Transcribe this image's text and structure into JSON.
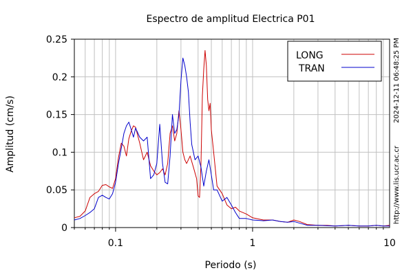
{
  "chart_data": {
    "type": "line",
    "title": "Espectro de amplitud Electrica P01",
    "xlabel": "Periodo (s)",
    "ylabel": "Amplitud (cm/s)",
    "x_scale": "log",
    "xlim": [
      0.05,
      10
    ],
    "ylim": [
      0,
      0.25
    ],
    "x_ticks": [
      {
        "value": 0.1,
        "label": "0.1"
      },
      {
        "value": 1,
        "label": "1"
      },
      {
        "value": 10,
        "label": "10"
      }
    ],
    "y_ticks": [
      {
        "value": 0,
        "label": "0"
      },
      {
        "value": 0.05,
        "label": "0.05"
      },
      {
        "value": 0.1,
        "label": "0.1"
      },
      {
        "value": 0.15,
        "label": "0.15"
      },
      {
        "value": 0.2,
        "label": "0.2"
      },
      {
        "value": 0.25,
        "label": "0.25"
      }
    ],
    "grid": true,
    "legend_position": "top-right",
    "side_text_top": "2024-12-11 06:48:25 PM",
    "side_text_bottom": "http://www.lis.ucr.ac.cr",
    "series": [
      {
        "name": "LONG",
        "color": "#cc0000",
        "points": [
          [
            0.05,
            0.013
          ],
          [
            0.055,
            0.015
          ],
          [
            0.06,
            0.022
          ],
          [
            0.065,
            0.04
          ],
          [
            0.07,
            0.045
          ],
          [
            0.075,
            0.048
          ],
          [
            0.08,
            0.056
          ],
          [
            0.085,
            0.057
          ],
          [
            0.09,
            0.054
          ],
          [
            0.095,
            0.052
          ],
          [
            0.1,
            0.065
          ],
          [
            0.105,
            0.093
          ],
          [
            0.11,
            0.112
          ],
          [
            0.115,
            0.108
          ],
          [
            0.12,
            0.095
          ],
          [
            0.125,
            0.118
          ],
          [
            0.13,
            0.128
          ],
          [
            0.135,
            0.135
          ],
          [
            0.14,
            0.133
          ],
          [
            0.15,
            0.112
          ],
          [
            0.16,
            0.09
          ],
          [
            0.17,
            0.1
          ],
          [
            0.18,
            0.082
          ],
          [
            0.19,
            0.075
          ],
          [
            0.2,
            0.07
          ],
          [
            0.21,
            0.073
          ],
          [
            0.22,
            0.078
          ],
          [
            0.23,
            0.07
          ],
          [
            0.24,
            0.085
          ],
          [
            0.25,
            0.125
          ],
          [
            0.26,
            0.135
          ],
          [
            0.27,
            0.115
          ],
          [
            0.28,
            0.125
          ],
          [
            0.29,
            0.155
          ],
          [
            0.3,
            0.13
          ],
          [
            0.31,
            0.1
          ],
          [
            0.32,
            0.09
          ],
          [
            0.33,
            0.085
          ],
          [
            0.35,
            0.095
          ],
          [
            0.37,
            0.08
          ],
          [
            0.39,
            0.065
          ],
          [
            0.4,
            0.042
          ],
          [
            0.41,
            0.04
          ],
          [
            0.42,
            0.085
          ],
          [
            0.43,
            0.175
          ],
          [
            0.44,
            0.21
          ],
          [
            0.45,
            0.235
          ],
          [
            0.46,
            0.215
          ],
          [
            0.47,
            0.17
          ],
          [
            0.48,
            0.155
          ],
          [
            0.49,
            0.165
          ],
          [
            0.5,
            0.13
          ],
          [
            0.52,
            0.1
          ],
          [
            0.55,
            0.055
          ],
          [
            0.6,
            0.045
          ],
          [
            0.65,
            0.03
          ],
          [
            0.7,
            0.025
          ],
          [
            0.75,
            0.027
          ],
          [
            0.8,
            0.022
          ],
          [
            0.9,
            0.018
          ],
          [
            1.0,
            0.013
          ],
          [
            1.2,
            0.01
          ],
          [
            1.4,
            0.01
          ],
          [
            1.6,
            0.008
          ],
          [
            1.8,
            0.007
          ],
          [
            2.0,
            0.01
          ],
          [
            2.2,
            0.008
          ],
          [
            2.5,
            0.004
          ],
          [
            3.0,
            0.003
          ],
          [
            3.5,
            0.003
          ],
          [
            4.0,
            0.002
          ],
          [
            5.0,
            0.003
          ],
          [
            6.0,
            0.002
          ],
          [
            7.0,
            0.002
          ],
          [
            8.0,
            0.003
          ],
          [
            9.0,
            0.002
          ],
          [
            10.0,
            0.003
          ]
        ]
      },
      {
        "name": "TRAN",
        "color": "#0000cc",
        "points": [
          [
            0.05,
            0.01
          ],
          [
            0.055,
            0.012
          ],
          [
            0.06,
            0.016
          ],
          [
            0.065,
            0.02
          ],
          [
            0.07,
            0.025
          ],
          [
            0.075,
            0.04
          ],
          [
            0.08,
            0.043
          ],
          [
            0.085,
            0.04
          ],
          [
            0.09,
            0.038
          ],
          [
            0.095,
            0.045
          ],
          [
            0.1,
            0.06
          ],
          [
            0.105,
            0.085
          ],
          [
            0.11,
            0.105
          ],
          [
            0.115,
            0.125
          ],
          [
            0.12,
            0.135
          ],
          [
            0.125,
            0.14
          ],
          [
            0.13,
            0.13
          ],
          [
            0.135,
            0.12
          ],
          [
            0.14,
            0.132
          ],
          [
            0.15,
            0.12
          ],
          [
            0.16,
            0.115
          ],
          [
            0.17,
            0.12
          ],
          [
            0.18,
            0.065
          ],
          [
            0.19,
            0.07
          ],
          [
            0.2,
            0.085
          ],
          [
            0.21,
            0.137
          ],
          [
            0.22,
            0.085
          ],
          [
            0.23,
            0.06
          ],
          [
            0.24,
            0.058
          ],
          [
            0.25,
            0.095
          ],
          [
            0.26,
            0.15
          ],
          [
            0.27,
            0.125
          ],
          [
            0.28,
            0.13
          ],
          [
            0.29,
            0.15
          ],
          [
            0.3,
            0.195
          ],
          [
            0.31,
            0.225
          ],
          [
            0.32,
            0.215
          ],
          [
            0.33,
            0.2
          ],
          [
            0.34,
            0.18
          ],
          [
            0.35,
            0.14
          ],
          [
            0.36,
            0.11
          ],
          [
            0.38,
            0.09
          ],
          [
            0.4,
            0.095
          ],
          [
            0.42,
            0.08
          ],
          [
            0.44,
            0.055
          ],
          [
            0.46,
            0.075
          ],
          [
            0.48,
            0.09
          ],
          [
            0.5,
            0.07
          ],
          [
            0.52,
            0.05
          ],
          [
            0.55,
            0.05
          ],
          [
            0.6,
            0.035
          ],
          [
            0.65,
            0.04
          ],
          [
            0.7,
            0.03
          ],
          [
            0.75,
            0.02
          ],
          [
            0.8,
            0.012
          ],
          [
            0.9,
            0.012
          ],
          [
            1.0,
            0.01
          ],
          [
            1.2,
            0.009
          ],
          [
            1.4,
            0.01
          ],
          [
            1.6,
            0.008
          ],
          [
            1.8,
            0.007
          ],
          [
            2.0,
            0.008
          ],
          [
            2.5,
            0.003
          ],
          [
            3.0,
            0.003
          ],
          [
            4.0,
            0.002
          ],
          [
            5.0,
            0.003
          ],
          [
            6.0,
            0.002
          ],
          [
            7.0,
            0.002
          ],
          [
            8.0,
            0.003
          ],
          [
            9.0,
            0.002
          ],
          [
            10.0,
            0.002
          ]
        ]
      }
    ]
  }
}
